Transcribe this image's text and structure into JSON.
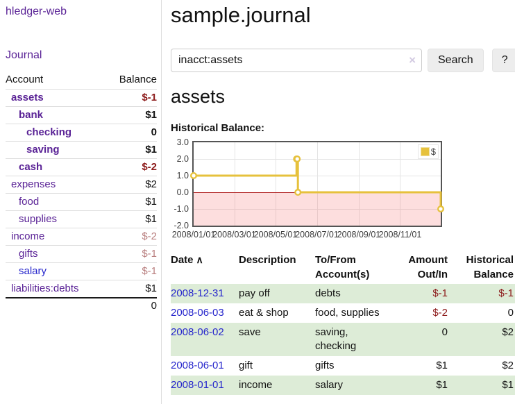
{
  "sidebar": {
    "brand": "hledger-web",
    "journal_label": "Journal",
    "accounts_table": {
      "headers": {
        "account": "Account",
        "balance": "Balance"
      },
      "rows": [
        {
          "name": "assets",
          "balance": "$-1",
          "level": 1,
          "bold": true,
          "negative": true,
          "unvisited": false
        },
        {
          "name": "bank",
          "balance": "$1",
          "level": 2,
          "bold": true,
          "negative": false,
          "unvisited": false
        },
        {
          "name": "checking",
          "balance": "0",
          "level": 3,
          "bold": true,
          "negative": false,
          "unvisited": false
        },
        {
          "name": "saving",
          "balance": "$1",
          "level": 3,
          "bold": true,
          "negative": false,
          "unvisited": false
        },
        {
          "name": "cash",
          "balance": "$-2",
          "level": 2,
          "bold": true,
          "negative": true,
          "unvisited": false
        },
        {
          "name": "expenses",
          "balance": "$2",
          "level": 1,
          "bold": false,
          "negative": false,
          "unvisited": false
        },
        {
          "name": "food",
          "balance": "$1",
          "level": 2,
          "bold": false,
          "negative": false,
          "unvisited": false
        },
        {
          "name": "supplies",
          "balance": "$1",
          "level": 2,
          "bold": false,
          "negative": false,
          "unvisited": false
        },
        {
          "name": "income",
          "balance": "$-2",
          "level": 1,
          "bold": false,
          "negative": true,
          "unvisited": false
        },
        {
          "name": "gifts",
          "balance": "$-1",
          "level": 2,
          "bold": false,
          "negative": true,
          "unvisited": false
        },
        {
          "name": "salary",
          "balance": "$-1",
          "level": 2,
          "bold": false,
          "negative": true,
          "unvisited": true
        },
        {
          "name": "liabilities:debts",
          "balance": "$1",
          "level": 1,
          "bold": false,
          "negative": false,
          "unvisited": false
        }
      ],
      "total": "0"
    }
  },
  "main": {
    "title": "sample.journal",
    "search": {
      "value": "inacct:assets",
      "clear_icon": "×",
      "search_button": "Search",
      "help_button": "?"
    },
    "account_heading": "assets",
    "chart_heading": "Historical Balance:"
  },
  "chart_data": {
    "type": "line",
    "step": true,
    "title": "Historical Balance:",
    "legend": "$",
    "legend_position": "top-right",
    "grid": true,
    "xlim": [
      "2008-01-01",
      "2008-12-31"
    ],
    "ylim": [
      -2,
      3
    ],
    "y_ticks": [
      "3.0",
      "2.0",
      "1.0",
      "0.0",
      "-1.0",
      "-2.0"
    ],
    "x_ticks": [
      "2008/01/01",
      "2008/03/01",
      "2008/05/01",
      "2008/07/01",
      "2008/09/01",
      "2008/11/01"
    ],
    "series": [
      {
        "name": "$",
        "color": "#e6c13c",
        "points": [
          [
            "2008-01-01",
            1
          ],
          [
            "2008-06-01",
            2
          ],
          [
            "2008-06-02",
            2
          ],
          [
            "2008-06-03",
            0
          ],
          [
            "2008-12-31",
            -1
          ]
        ]
      }
    ]
  },
  "register_table": {
    "headers": {
      "date": "Date",
      "sort_indicator": "∧",
      "description": "Description",
      "tofrom": "To/From Account(s)",
      "amount": "Amount Out/In",
      "historical": "Historical Balance"
    },
    "rows": [
      {
        "date": "2008-12-31",
        "description": "pay off",
        "accounts": "debts",
        "amount": "$-1",
        "balance": "$-1"
      },
      {
        "date": "2008-06-03",
        "description": "eat & shop",
        "accounts": "food, supplies",
        "amount": "$-2",
        "balance": "0"
      },
      {
        "date": "2008-06-02",
        "description": "save",
        "accounts": "saving, checking",
        "amount": "0",
        "balance": "$2"
      },
      {
        "date": "2008-06-01",
        "description": "gift",
        "accounts": "gifts",
        "amount": "$1",
        "balance": "$2"
      },
      {
        "date": "2008-01-01",
        "description": "income",
        "accounts": "salary",
        "amount": "$1",
        "balance": "$1"
      }
    ]
  },
  "colors": {
    "link_purple": "#5a2396",
    "link_blue": "#2626cc",
    "neg_strong": "#8c1a1a",
    "neg_soft": "#b97f7f",
    "stripe_green": "#ddecd7",
    "series_gold": "#e6c13c",
    "zero_line": "#990000",
    "btn_bg": "#ededed"
  }
}
